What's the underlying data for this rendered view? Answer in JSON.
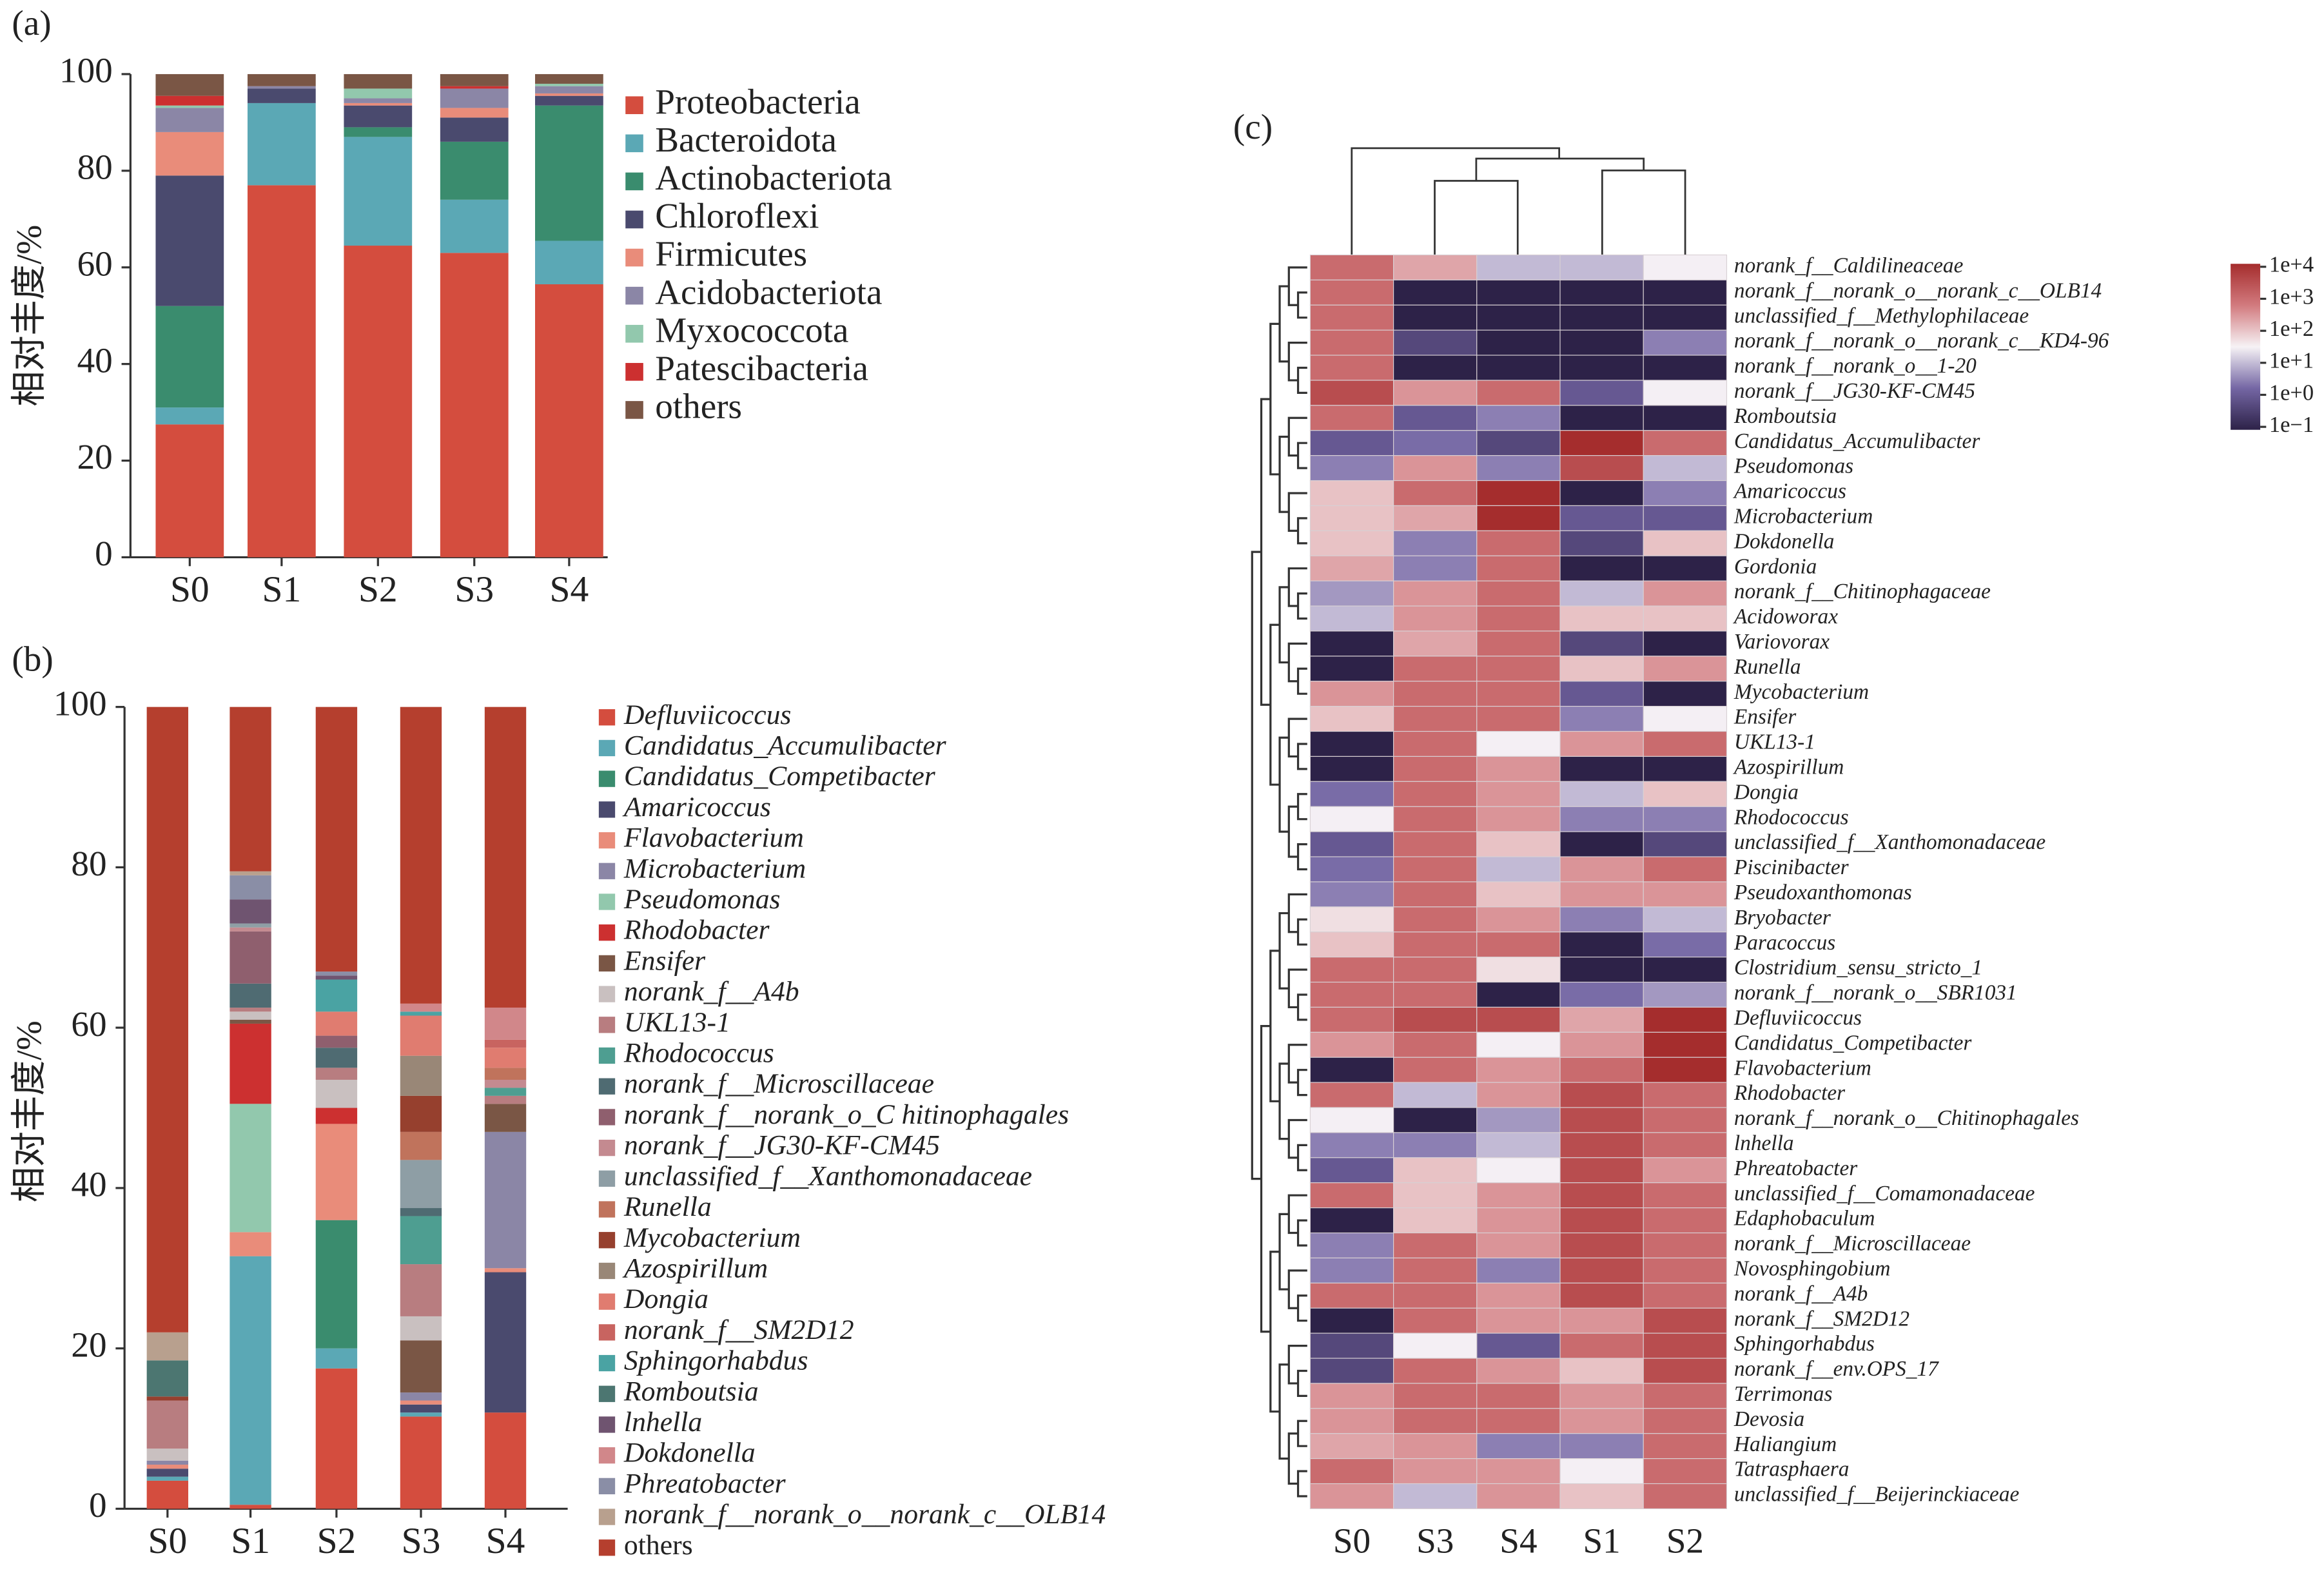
{
  "chart_data": [
    {
      "type": "stacked_bar",
      "panel_label": "(a)",
      "ylabel": "相对丰度/%",
      "categories": [
        "S0",
        "S1",
        "S2",
        "S3",
        "S4"
      ],
      "ylim": [
        0,
        100
      ],
      "yticks": [
        0,
        20,
        40,
        60,
        80,
        100
      ],
      "series": [
        {
          "name": "Proteobacteria",
          "color": "#d44d3e",
          "values": [
            27.5,
            77,
            64.5,
            63,
            56.5
          ]
        },
        {
          "name": "Bacteroidota",
          "color": "#5ba8b5",
          "values": [
            3.5,
            17,
            22.5,
            11,
            9
          ]
        },
        {
          "name": "Actinobacteriota",
          "color": "#3a8c6e",
          "values": [
            21,
            0,
            2,
            12,
            28
          ]
        },
        {
          "name": "Chloroflexi",
          "color": "#4a4a6e",
          "values": [
            27,
            3,
            4.5,
            5,
            2
          ]
        },
        {
          "name": "Firmicutes",
          "color": "#e98c7a",
          "values": [
            9,
            0,
            0.5,
            2,
            0.5
          ]
        },
        {
          "name": "Acidobacteriota",
          "color": "#8b86a6",
          "values": [
            5,
            0.5,
            1,
            4,
            1.5
          ]
        },
        {
          "name": "Myxococcota",
          "color": "#92c8ad",
          "values": [
            0.5,
            0,
            2,
            0,
            0.5
          ]
        },
        {
          "name": "Patescibacteria",
          "color": "#cc3030",
          "values": [
            2,
            0,
            0,
            0.5,
            0
          ]
        },
        {
          "name": "others",
          "color": "#7a5645",
          "values": [
            4.5,
            2.5,
            3,
            2.5,
            2
          ]
        }
      ]
    },
    {
      "type": "stacked_bar",
      "panel_label": "(b)",
      "ylabel": "相对丰度/%",
      "categories": [
        "S0",
        "S1",
        "S2",
        "S3",
        "S4"
      ],
      "ylim": [
        0,
        100
      ],
      "yticks": [
        0,
        20,
        40,
        60,
        80,
        100
      ],
      "series": [
        {
          "name": "Defluviicoccus",
          "color": "#d44d3e",
          "values": [
            3.5,
            0.5,
            17.5,
            11.5,
            12
          ]
        },
        {
          "name": "Candidatus_Accumulibacter",
          "color": "#5ba8b5",
          "values": [
            0.5,
            31,
            2.5,
            0.5,
            0
          ]
        },
        {
          "name": "Candidatus_Competibacter",
          "color": "#3a8c6e",
          "values": [
            0,
            0,
            16,
            0,
            0
          ]
        },
        {
          "name": "Amaricoccus",
          "color": "#4a4a6e",
          "values": [
            1,
            0,
            0,
            1,
            17.5
          ]
        },
        {
          "name": "Flavobacterium",
          "color": "#e98c7a",
          "values": [
            0.5,
            3,
            12,
            0.5,
            0.5
          ]
        },
        {
          "name": "Microbacterium",
          "color": "#8b86a6",
          "values": [
            0.5,
            0,
            0,
            1,
            17
          ]
        },
        {
          "name": "Pseudomonas",
          "color": "#92c8ad",
          "values": [
            0,
            16,
            0,
            0,
            0
          ]
        },
        {
          "name": "Rhodobacter",
          "color": "#cc3030",
          "values": [
            0,
            10,
            2,
            0,
            0
          ]
        },
        {
          "name": "Ensifer",
          "color": "#7a5645",
          "values": [
            0,
            0.5,
            0,
            6.5,
            3.5
          ]
        },
        {
          "name": "norank_f__A4b",
          "color": "#c9c0c0",
          "values": [
            1.5,
            1,
            3.5,
            3,
            0
          ]
        },
        {
          "name": "UKL13-1",
          "color": "#b87d80",
          "values": [
            6,
            0.5,
            1.5,
            6.5,
            1
          ]
        },
        {
          "name": "Rhodococcus",
          "color": "#4e9e91",
          "values": [
            0,
            0,
            0,
            6,
            1
          ]
        },
        {
          "name": "norank_f__Microscillaceae",
          "color": "#4f6b72",
          "values": [
            0,
            3,
            2.5,
            1,
            0
          ]
        },
        {
          "name": "norank_f__norank_o_C hitinophagales",
          "color": "#8f5f6e",
          "values": [
            0,
            6.5,
            1.5,
            0,
            0
          ]
        },
        {
          "name": "norank_f__JG30-KF-CM45",
          "color": "#c48a90",
          "values": [
            0,
            0.5,
            0,
            0,
            1
          ]
        },
        {
          "name": "unclassified_f__Xanthomonadaceae",
          "color": "#8e9ea5",
          "values": [
            0,
            0.5,
            0,
            6,
            0
          ]
        },
        {
          "name": "Runella",
          "color": "#c0735c",
          "values": [
            0,
            0,
            0,
            3.5,
            1.5
          ]
        },
        {
          "name": "Mycobacterium",
          "color": "#96402e",
          "values": [
            0.5,
            0,
            0,
            4.5,
            0
          ]
        },
        {
          "name": "Azospirillum",
          "color": "#998777",
          "values": [
            0,
            0,
            0,
            5,
            0
          ]
        },
        {
          "name": "Dongia",
          "color": "#e07c70",
          "values": [
            0,
            0,
            3,
            5,
            2.5
          ]
        },
        {
          "name": "norank_f__SM2D12",
          "color": "#c86460",
          "values": [
            0,
            0,
            0,
            0,
            1
          ]
        },
        {
          "name": "Sphingorhabdus",
          "color": "#4aa3a3",
          "values": [
            0,
            0,
            4,
            0.5,
            0
          ]
        },
        {
          "name": "Romboutsia",
          "color": "#4c7671",
          "values": [
            4.5,
            0,
            0,
            0,
            0
          ]
        },
        {
          "name": "lnhella",
          "color": "#6f5470",
          "values": [
            0,
            3,
            0.5,
            0,
            0
          ]
        },
        {
          "name": "Dokdonella",
          "color": "#d1878a",
          "values": [
            0,
            0,
            0,
            1,
            4
          ]
        },
        {
          "name": "Phreatobacter",
          "color": "#8a8ea6",
          "values": [
            0,
            3,
            0.5,
            0,
            0
          ]
        },
        {
          "name": "norank_f__norank_o__norank_c__OLB14",
          "color": "#b8a08e",
          "values": [
            3.5,
            0.5,
            0,
            0,
            0
          ]
        },
        {
          "name": "others",
          "color": "#b53f2e",
          "values": [
            78,
            20.5,
            33,
            37,
            37.5
          ]
        }
      ]
    },
    {
      "type": "heatmap",
      "panel_label": "(c)",
      "x": [
        "S0",
        "S3",
        "S4",
        "S1",
        "S2"
      ],
      "y": [
        "norank_f__Caldilineaceae",
        "norank_f__norank_o__norank_c__OLB14",
        "unclassified_f__Methylophilaceae",
        "norank_f__norank_o__norank_c__KD4-96",
        "norank_f__norank_o__1-20",
        "norank_f__JG30-KF-CM45",
        "Romboutsia",
        "Candidatus_Accumulibacter",
        "Pseudomonas",
        "Amaricoccus",
        "Microbacterium",
        "Dokdonella",
        "Gordonia",
        "norank_f__Chitinophagaceae",
        "Acidoworax",
        "Variovorax",
        "Runella",
        "Mycobacterium",
        "Ensifer",
        "UKL13-1",
        "Azospirillum",
        "Dongia",
        "Rhodococcus",
        "unclassified_f__Xanthomonadaceae",
        "Piscinibacter",
        "Pseudoxanthomonas",
        "Bryobacter",
        "Paracoccus",
        "Clostridium_sensu_stricto_1",
        "norank_f__norank_o__SBR1031",
        "Defluviicoccus",
        "Candidatus_Competibacter",
        "Flavobacterium",
        "Rhodobacter",
        "norank_f__norank_o__Chitinophagales",
        "lnhella",
        "Phreatobacter",
        "unclassified_f__Comamonadaceae",
        "Edaphobaculum",
        "norank_f__Microscillaceae",
        "Novosphingobium",
        "norank_f__A4b",
        "norank_f__SM2D12",
        "Sphingorhabdus",
        "norank_f__env.OPS_17",
        "Terrimonas",
        "Devosia",
        "Haliangium",
        "Tatrasphaera",
        "unclassified_f__Beijerinckiaceae"
      ],
      "values": [
        [
          1000,
          200,
          10,
          10,
          30
        ],
        [
          1000,
          0.1,
          0.1,
          0.1,
          0.1
        ],
        [
          1000,
          0.1,
          0.1,
          0.1,
          0.1
        ],
        [
          1000,
          0.5,
          0.1,
          0.1,
          3
        ],
        [
          1000,
          0.1,
          0.1,
          0.1,
          0.1
        ],
        [
          3000,
          300,
          1000,
          1,
          30
        ],
        [
          1000,
          1,
          3,
          0.1,
          0.1
        ],
        [
          1,
          2,
          0.5,
          10000,
          1000
        ],
        [
          3,
          300,
          3,
          3000,
          10
        ],
        [
          100,
          1000,
          10000,
          0.1,
          3
        ],
        [
          100,
          200,
          10000,
          1,
          1
        ],
        [
          100,
          3,
          1000,
          0.5,
          100
        ],
        [
          200,
          3,
          1000,
          0.1,
          0.1
        ],
        [
          5,
          300,
          1000,
          10,
          300
        ],
        [
          10,
          300,
          1000,
          100,
          100
        ],
        [
          0.1,
          200,
          1000,
          0.5,
          0.1
        ],
        [
          0.1,
          1000,
          1000,
          100,
          300
        ],
        [
          300,
          1000,
          1000,
          1,
          0.1
        ],
        [
          100,
          1000,
          1000,
          3,
          30
        ],
        [
          0.1,
          1000,
          30,
          300,
          1000
        ],
        [
          0.1,
          1000,
          300,
          0.1,
          0.1
        ],
        [
          2,
          1000,
          300,
          10,
          100
        ],
        [
          30,
          1000,
          300,
          3,
          3
        ],
        [
          1,
          1000,
          100,
          0.1,
          0.5
        ],
        [
          2,
          1000,
          10,
          300,
          1000
        ],
        [
          3,
          1000,
          100,
          300,
          300
        ],
        [
          50,
          1000,
          300,
          3,
          10
        ],
        [
          100,
          1000,
          1000,
          0.1,
          2
        ],
        [
          1000,
          1000,
          50,
          0.1,
          0.1
        ],
        [
          1000,
          1000,
          0.1,
          2,
          5
        ],
        [
          1000,
          3000,
          3000,
          200,
          10000
        ],
        [
          300,
          1000,
          30,
          300,
          10000
        ],
        [
          0.1,
          1000,
          300,
          1000,
          10000
        ],
        [
          1000,
          10,
          300,
          3000,
          1000
        ],
        [
          30,
          0.1,
          5,
          3000,
          1000
        ],
        [
          3,
          3,
          10,
          3000,
          1000
        ],
        [
          1,
          100,
          30,
          3000,
          300
        ],
        [
          1000,
          100,
          300,
          3000,
          1000
        ],
        [
          0.1,
          100,
          300,
          3000,
          1000
        ],
        [
          3,
          1000,
          300,
          3000,
          1000
        ],
        [
          3,
          1000,
          3,
          3000,
          1000
        ],
        [
          1000,
          1000,
          300,
          3000,
          1000
        ],
        [
          0.1,
          1000,
          300,
          300,
          3000
        ],
        [
          0.5,
          30,
          1,
          1000,
          3000
        ],
        [
          0.5,
          1000,
          300,
          100,
          3000
        ],
        [
          300,
          1000,
          1000,
          300,
          1000
        ],
        [
          300,
          1000,
          1000,
          300,
          1000
        ],
        [
          200,
          300,
          3,
          3,
          1000
        ],
        [
          1000,
          300,
          300,
          30,
          1000
        ],
        [
          300,
          10,
          300,
          100,
          1000
        ]
      ],
      "log_scale": true,
      "zlim": [
        0.1,
        10000
      ],
      "zticks": [
        {
          "value": 0.1,
          "label": "1e−1"
        },
        {
          "value": 1,
          "label": "1e+0"
        },
        {
          "value": 10,
          "label": "1e+1"
        },
        {
          "value": 100,
          "label": "1e+2"
        },
        {
          "value": 1000,
          "label": "1e+3"
        },
        {
          "value": 10000,
          "label": "1e+4"
        }
      ],
      "colors": [
        "#2d2248",
        "#7466a4",
        "#f6f2f5",
        "#d27a7e",
        "#a52d2d"
      ]
    }
  ]
}
